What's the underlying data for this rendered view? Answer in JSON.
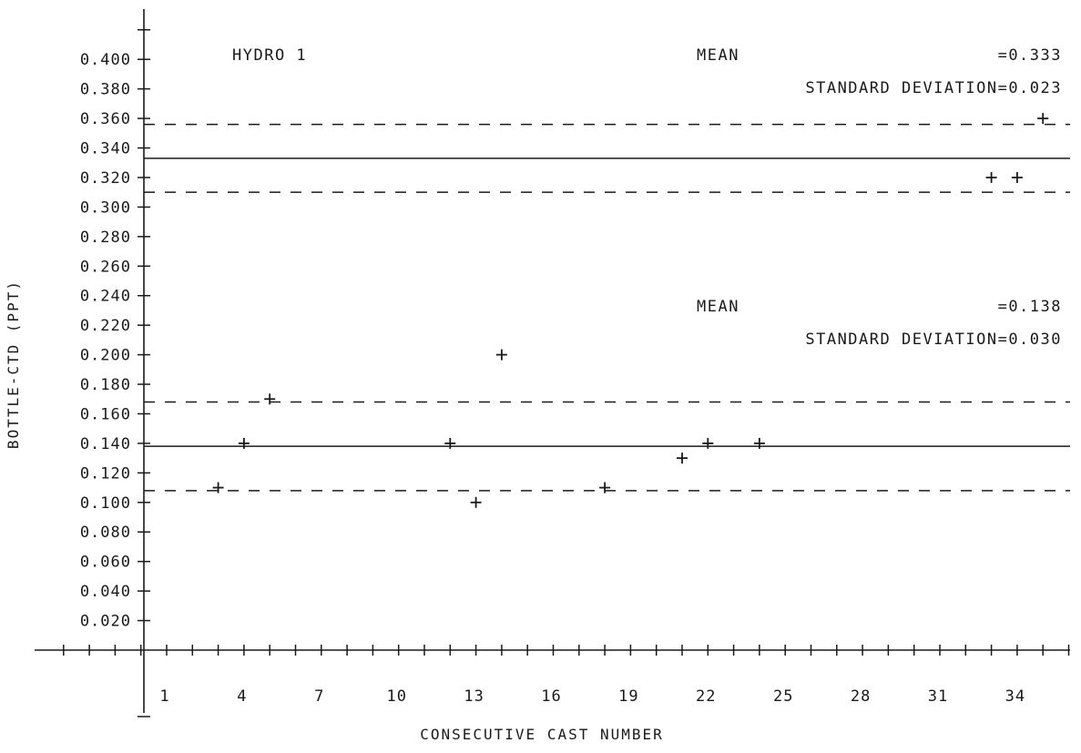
{
  "chart_data": {
    "type": "scatter",
    "title": "",
    "xlabel": "CONSECUTIVE CAST NUMBER",
    "ylabel": "BOTTLE-CTD (PPT)",
    "xlim": [
      -3,
      36
    ],
    "ylim": [
      0,
      0.42
    ],
    "x_tick_labels": [
      "1",
      "4",
      "7",
      "10",
      "13",
      "16",
      "19",
      "22",
      "25",
      "28",
      "31",
      "34"
    ],
    "y_tick_labels": [
      "0.020",
      "0.040",
      "0.060",
      "0.080",
      "0.100",
      "0.120",
      "0.140",
      "0.160",
      "0.180",
      "0.200",
      "0.220",
      "0.240",
      "0.260",
      "0.280",
      "0.300",
      "0.320",
      "0.340",
      "0.360",
      "0.380",
      "0.400"
    ],
    "y_tick_values": [
      0.02,
      0.04,
      0.06,
      0.08,
      0.1,
      0.12,
      0.14,
      0.16,
      0.18,
      0.2,
      0.22,
      0.24,
      0.26,
      0.28,
      0.3,
      0.32,
      0.34,
      0.36,
      0.38,
      0.4
    ],
    "x_tick_values": [
      1,
      4,
      7,
      10,
      13,
      16,
      19,
      22,
      25,
      28,
      31,
      34
    ],
    "series": [
      {
        "points": [
          {
            "x": 3,
            "y": 0.11
          },
          {
            "x": 4,
            "y": 0.14
          },
          {
            "x": 5,
            "y": 0.17
          },
          {
            "x": 12,
            "y": 0.14
          },
          {
            "x": 13,
            "y": 0.1
          },
          {
            "x": 14,
            "y": 0.2
          },
          {
            "x": 18,
            "y": 0.11
          },
          {
            "x": 21,
            "y": 0.13
          },
          {
            "x": 22,
            "y": 0.14
          },
          {
            "x": 24,
            "y": 0.14
          },
          {
            "x": 33,
            "y": 0.32
          },
          {
            "x": 34,
            "y": 0.32
          },
          {
            "x": 35,
            "y": 0.36
          }
        ]
      }
    ],
    "reference_lines": [
      {
        "y": 0.333,
        "style": "solid"
      },
      {
        "y": 0.356,
        "style": "dashed"
      },
      {
        "y": 0.31,
        "style": "dashed"
      },
      {
        "y": 0.138,
        "style": "solid"
      },
      {
        "y": 0.168,
        "style": "dashed"
      },
      {
        "y": 0.108,
        "style": "dashed"
      }
    ],
    "annotations": {
      "label": "HYDRO 1",
      "upper_group": {
        "mean_label": "MEAN",
        "mean_value": "=0.333",
        "sd_text": "STANDARD DEVIATION=0.023"
      },
      "lower_group": {
        "mean_label": "MEAN",
        "mean_value": "=0.138",
        "sd_text": "STANDARD DEVIATION=0.030"
      }
    },
    "grid": false,
    "legend": "none"
  }
}
